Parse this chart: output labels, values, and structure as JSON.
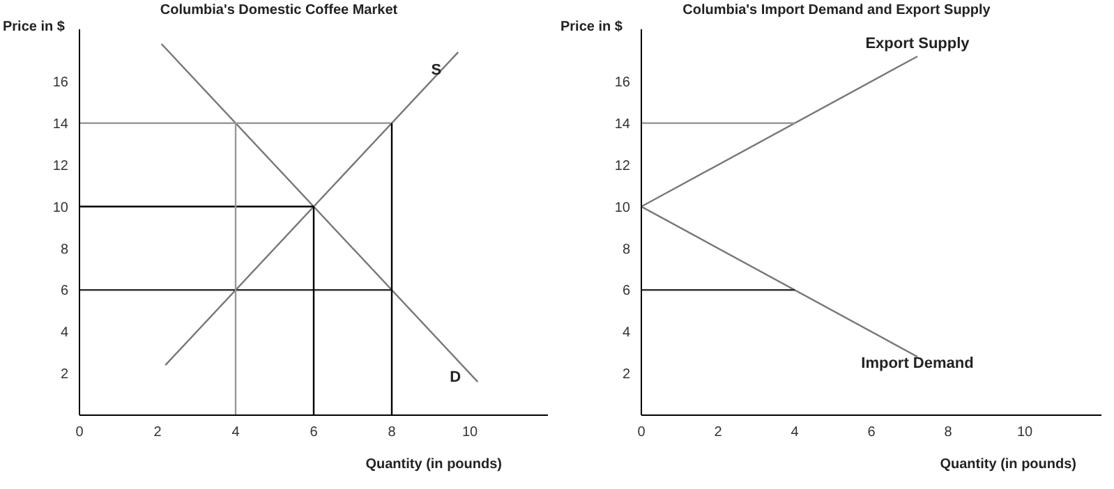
{
  "chart_data": [
    {
      "type": "line",
      "title": "Columbia's Domestic Coffee Market",
      "xlabel": "Quantity (in pounds)",
      "ylabel": "Price in $",
      "xlim": [
        0,
        12
      ],
      "ylim": [
        0,
        18.5
      ],
      "xticks": [
        0,
        2,
        4,
        6,
        8,
        10
      ],
      "yticks": [
        2,
        4,
        6,
        8,
        10,
        12,
        14,
        16
      ],
      "grid": false,
      "legend": false,
      "marker": "none",
      "line_style": "solid",
      "series": [
        {
          "name": "S",
          "color": "#777777",
          "x": [
            2.2,
            9.7
          ],
          "values": [
            2.4,
            17.4
          ]
        },
        {
          "name": "D",
          "color": "#777777",
          "x": [
            2.1,
            10.2
          ],
          "values": [
            17.8,
            1.6
          ]
        },
        {
          "color": "#999999",
          "x": [
            0,
            8
          ],
          "values": [
            14,
            14
          ]
        },
        {
          "color": "#000000",
          "x": [
            0,
            6
          ],
          "values": [
            10,
            10
          ]
        },
        {
          "color": "#333333",
          "x": [
            0,
            8
          ],
          "values": [
            6,
            6
          ]
        },
        {
          "color": "#999999",
          "x": [
            4,
            4
          ],
          "values": [
            0,
            14
          ]
        },
        {
          "color": "#000000",
          "x": [
            6,
            6
          ],
          "values": [
            0,
            10
          ]
        },
        {
          "color": "#000000",
          "x": [
            8,
            8
          ],
          "values": [
            0,
            14
          ]
        }
      ]
    },
    {
      "type": "line",
      "title": "Columbia's Import Demand and Export Supply",
      "xlabel": "Quantity (in pounds)",
      "ylabel": "Price in $",
      "xlim": [
        0,
        12
      ],
      "ylim": [
        0,
        18.5
      ],
      "xticks": [
        0,
        2,
        4,
        6,
        8,
        10
      ],
      "yticks": [
        2,
        4,
        6,
        8,
        10,
        12,
        14,
        16
      ],
      "grid": false,
      "legend": false,
      "marker": "none",
      "line_style": "solid",
      "series": [
        {
          "name": "Export Supply",
          "color": "#777777",
          "x": [
            0,
            7.2
          ],
          "values": [
            10,
            17.2
          ]
        },
        {
          "name": "Import Demand",
          "color": "#777777",
          "x": [
            0,
            7.2
          ],
          "values": [
            10,
            2.8
          ]
        },
        {
          "color": "#999999",
          "x": [
            0,
            4
          ],
          "values": [
            14,
            14
          ]
        },
        {
          "color": "#333333",
          "x": [
            0,
            4
          ],
          "values": [
            6,
            6
          ]
        }
      ]
    }
  ]
}
